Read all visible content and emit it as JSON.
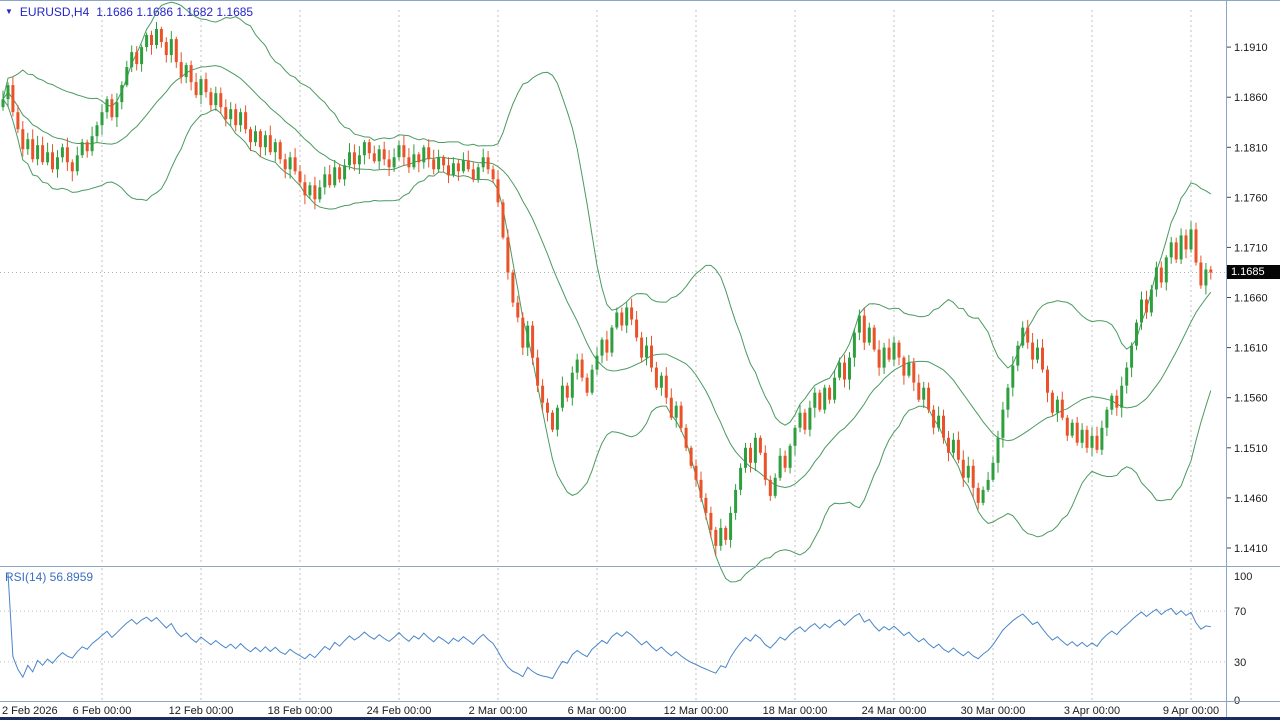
{
  "window": {
    "symbol_period": "EURUSD,H4",
    "quote": "1.1686 1.1686 1.1682 1.1685"
  },
  "colors": {
    "header_text": "#2424cc",
    "up": "#2f9e3f",
    "down": "#ea5329",
    "bollinger": "#4a9a60",
    "rsi_line": "#4a86c8",
    "rsi_label_text": "#3a6fbf",
    "grid": "#c0c0c0",
    "axis_text": "#1c1c1c",
    "separator": "#8ca6c6",
    "badge_bg": "#050505",
    "badge_text": "#ffffff",
    "bid_line": "#b0b0b0",
    "bottom_bar": "#1c2c5e"
  },
  "price_axis": {
    "labels": [
      "1.1910",
      "1.1860",
      "1.1810",
      "1.1760",
      "1.1710",
      "1.1660",
      "1.1610",
      "1.1560",
      "1.1510",
      "1.1460",
      "1.1410"
    ],
    "current_price": "1.1685"
  },
  "time_axis": {
    "labels": [
      "2 Feb 2026",
      "6 Feb 00:00",
      "12 Feb 00:00",
      "18 Feb 00:00",
      "24 Feb 00:00",
      "2 Mar 00:00",
      "6 Mar 00:00",
      "12 Mar 00:00",
      "18 Mar 00:00",
      "24 Mar 00:00",
      "30 Mar 00:00",
      "3 Apr 00:00",
      "9 Apr 00:00"
    ]
  },
  "rsi": {
    "label": "RSI(14) 56.8959",
    "period": 14,
    "levels": [
      100,
      70,
      30,
      0
    ]
  },
  "chart_data": {
    "type": "candlestick",
    "symbol": "EURUSD",
    "timeframe": "H4",
    "title": "EURUSD,H4 with Bollinger Bands and RSI(14) sub-window",
    "ylim": [
      1.1395,
      1.1949
    ],
    "price_ticks": [
      1.191,
      1.186,
      1.181,
      1.176,
      1.171,
      1.166,
      1.161,
      1.156,
      1.151,
      1.146,
      1.141
    ],
    "rsi_final_value": 56.8959,
    "last_price": 1.1685,
    "candles_per_label": 20,
    "first_open": 1.185,
    "closes": [
      1.1858,
      1.1872,
      1.1845,
      1.1828,
      1.1808,
      1.1818,
      1.1798,
      1.1812,
      1.1795,
      1.1805,
      1.1788,
      1.18,
      1.181,
      1.1795,
      1.1786,
      1.1802,
      1.1815,
      1.1806,
      1.1821,
      1.1832,
      1.1845,
      1.1858,
      1.184,
      1.1855,
      1.1872,
      1.189,
      1.1905,
      1.1893,
      1.191,
      1.1922,
      1.1912,
      1.1928,
      1.1915,
      1.1902,
      1.1918,
      1.1895,
      1.188,
      1.1892,
      1.1875,
      1.1862,
      1.1878,
      1.1865,
      1.1852,
      1.1864,
      1.185,
      1.1838,
      1.1848,
      1.1832,
      1.1845,
      1.1828,
      1.1815,
      1.1826,
      1.181,
      1.1822,
      1.1805,
      1.1815,
      1.1798,
      1.1788,
      1.18,
      1.1786,
      1.1775,
      1.1762,
      1.1772,
      1.1758,
      1.177,
      1.1783,
      1.1772,
      1.179,
      1.1778,
      1.1792,
      1.1805,
      1.1793,
      1.1802,
      1.1815,
      1.1804,
      1.1796,
      1.1808,
      1.1798,
      1.179,
      1.18,
      1.1812,
      1.18,
      1.179,
      1.1803,
      1.1795,
      1.181,
      1.1798,
      1.1788,
      1.18,
      1.1792,
      1.1782,
      1.1794,
      1.1786,
      1.1797,
      1.1788,
      1.1778,
      1.179,
      1.18,
      1.1788,
      1.1778,
      1.1755,
      1.172,
      1.1685,
      1.1655,
      1.164,
      1.161,
      1.1632,
      1.16,
      1.1572,
      1.1555,
      1.1545,
      1.1528,
      1.155,
      1.1572,
      1.156,
      1.1585,
      1.1598,
      1.158,
      1.1565,
      1.1588,
      1.1602,
      1.1618,
      1.1605,
      1.163,
      1.1645,
      1.1632,
      1.165,
      1.1638,
      1.162,
      1.16,
      1.1612,
      1.159,
      1.157,
      1.1582,
      1.156,
      1.154,
      1.1552,
      1.153,
      1.151,
      1.1492,
      1.1478,
      1.146,
      1.1445,
      1.1428,
      1.1412,
      1.143,
      1.1418,
      1.1445,
      1.1468,
      1.149,
      1.151,
      1.1495,
      1.152,
      1.1505,
      1.1478,
      1.1462,
      1.148,
      1.1502,
      1.149,
      1.1512,
      1.153,
      1.1545,
      1.1528,
      1.155,
      1.1565,
      1.1548,
      1.157,
      1.1558,
      1.158,
      1.1595,
      1.1578,
      1.16,
      1.1625,
      1.1642,
      1.1615,
      1.163,
      1.1608,
      1.159,
      1.161,
      1.1598,
      1.1615,
      1.16,
      1.1582,
      1.1595,
      1.1575,
      1.1558,
      1.157,
      1.1548,
      1.153,
      1.1542,
      1.152,
      1.1505,
      1.1518,
      1.1498,
      1.148,
      1.1492,
      1.147,
      1.1455,
      1.1468,
      1.1478,
      1.1495,
      1.152,
      1.1548,
      1.157,
      1.1592,
      1.1612,
      1.163,
      1.1615,
      1.1598,
      1.161,
      1.1588,
      1.1565,
      1.1545,
      1.1558,
      1.154,
      1.1522,
      1.1535,
      1.1515,
      1.1528,
      1.151,
      1.1522,
      1.1508,
      1.153,
      1.1548,
      1.1562,
      1.155,
      1.1572,
      1.159,
      1.1612,
      1.1635,
      1.1658,
      1.1645,
      1.1668,
      1.169,
      1.1675,
      1.17,
      1.1715,
      1.1698,
      1.1722,
      1.1708,
      1.1728,
      1.1695,
      1.1672,
      1.1688,
      1.1685
    ]
  }
}
